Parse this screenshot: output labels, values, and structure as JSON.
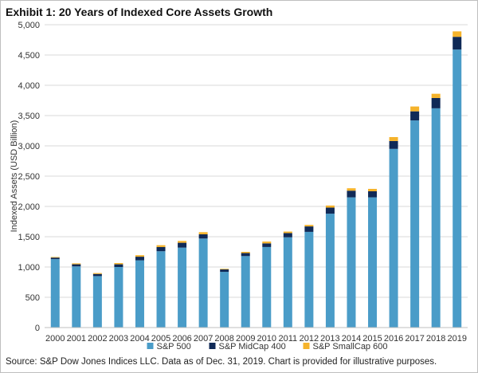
{
  "title": "Exhibit 1: 20 Years of Indexed Core Assets Growth",
  "source": "Source: S&P Dow Jones Indices LLC. Data as of Dec. 31, 2019. Chart is provided for illustrative purposes.",
  "colors": {
    "sp500": "#4a9cc8",
    "midcap": "#102a57",
    "smallcap": "#f5b32b",
    "gridline": "#d9d9d9",
    "axis": "#bfbfbf"
  },
  "chart_data": {
    "type": "bar",
    "stacked": true,
    "title": "Exhibit 1: 20 Years of Indexed Core Assets Growth",
    "xlabel": "",
    "ylabel": "Indexed Assets (USD Billion)",
    "ylim": [
      0,
      5000
    ],
    "yticks": [
      0,
      500,
      1000,
      1500,
      2000,
      2500,
      3000,
      3500,
      4000,
      4500,
      5000
    ],
    "ytick_labels": [
      "0",
      "500",
      "1,000",
      "1,500",
      "2,000",
      "2,500",
      "3,000",
      "3,500",
      "4,000",
      "4,500",
      "5,000"
    ],
    "grid": "horizontal",
    "legend_position": "bottom",
    "categories": [
      "2000",
      "2001",
      "2002",
      "2003",
      "2004",
      "2005",
      "2006",
      "2007",
      "2008",
      "2009",
      "2010",
      "2011",
      "2012",
      "2013",
      "2014",
      "2015",
      "2016",
      "2017",
      "2018",
      "2019"
    ],
    "series": [
      {
        "name": "S&P 500",
        "color": "#4a9cc8",
        "values": [
          1130,
          1010,
          850,
          1000,
          1110,
          1260,
          1320,
          1470,
          920,
          1180,
          1330,
          1490,
          1580,
          1880,
          2150,
          2150,
          2950,
          3420,
          3620,
          4590
        ]
      },
      {
        "name": "S&P MidCap 400",
        "color": "#102a57",
        "values": [
          25,
          35,
          35,
          45,
          60,
          70,
          80,
          70,
          40,
          50,
          60,
          70,
          90,
          100,
          110,
          100,
          130,
          150,
          170,
          210
        ]
      },
      {
        "name": "S&P SmallCap 600",
        "color": "#f5b32b",
        "values": [
          10,
          15,
          15,
          20,
          25,
          30,
          30,
          35,
          10,
          20,
          30,
          25,
          25,
          35,
          40,
          40,
          65,
          80,
          70,
          90
        ]
      }
    ]
  }
}
